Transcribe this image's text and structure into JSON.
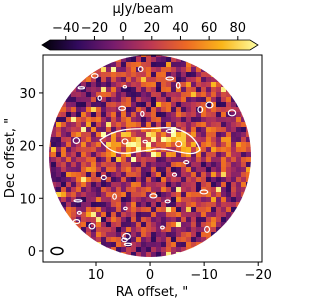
{
  "chart_data": {
    "type": "image",
    "colorbar_label": "μJy/beam",
    "xlabel": "RA offset, \"",
    "ylabel": "Dec offset, \"",
    "xlim": [
      19.8,
      -20.7
    ],
    "ylim": [
      -2.1,
      37.2
    ],
    "xticks": [
      10,
      0,
      {
        "value": -10,
        "label": "−10"
      },
      {
        "value": -20,
        "label": "−20"
      }
    ],
    "yticks": [
      0,
      10,
      20,
      30
    ],
    "cblim": [
      -51,
      88.5
    ],
    "cbticks": [
      {
        "value": -40,
        "label": "−40"
      },
      {
        "value": -20,
        "label": "−20"
      },
      0,
      20,
      40,
      60,
      80
    ],
    "colormap": [
      "#000004",
      "#320a5e",
      "#781c6d",
      "#bc3754",
      "#ed6925",
      "#fbb61a",
      "#fcffa4"
    ]
  }
}
